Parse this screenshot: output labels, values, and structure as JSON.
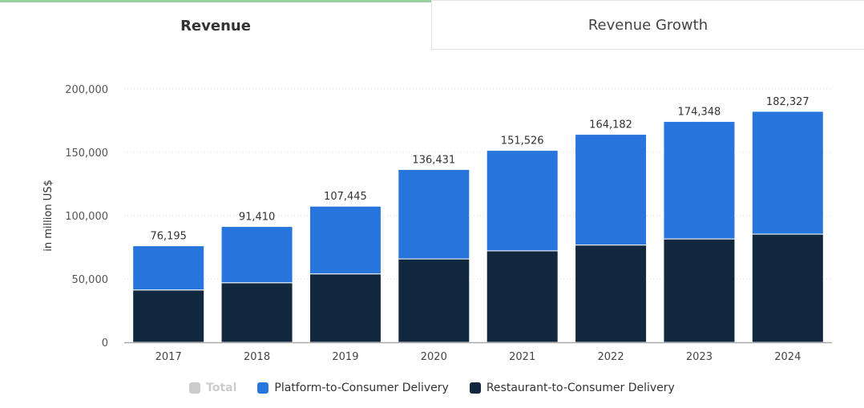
{
  "tabs": [
    {
      "label": "Revenue",
      "active": true
    },
    {
      "label": "Revenue Growth",
      "active": false
    }
  ],
  "colors": {
    "platform": "#2876dd",
    "restaurant": "#12283f",
    "total_hidden": "#cccccc",
    "tab_accent": "#97cf9d"
  },
  "chart_data": {
    "type": "bar",
    "stacked": true,
    "ylabel": "in million US$",
    "ylim": [
      0,
      200000
    ],
    "yticks": [
      "0",
      "50,000",
      "100,000",
      "150,000",
      "200,000"
    ],
    "ytick_values": [
      0,
      50000,
      100000,
      150000,
      200000
    ],
    "grid": true,
    "categories": [
      "2017",
      "2018",
      "2019",
      "2020",
      "2021",
      "2022",
      "2023",
      "2024"
    ],
    "totals": [
      "76,195",
      "91,410",
      "107,445",
      "136,431",
      "151,526",
      "164,182",
      "174,348",
      "182,327"
    ],
    "total_values": [
      76195,
      91410,
      107445,
      136431,
      151526,
      164182,
      174348,
      182327
    ],
    "series": [
      {
        "name": "Restaurant-to-Consumer Delivery",
        "values": [
          41300,
          47000,
          54000,
          65800,
          72200,
          76800,
          81600,
          85400
        ]
      },
      {
        "name": "Platform-to-Consumer Delivery",
        "values": [
          34895,
          44410,
          53445,
          70631,
          79326,
          87382,
          92748,
          96927
        ]
      }
    ],
    "legend": [
      {
        "label": "Total",
        "hidden": true
      },
      {
        "label": "Platform-to-Consumer Delivery"
      },
      {
        "label": "Restaurant-to-Consumer Delivery"
      }
    ],
    "legend_position": "bottom"
  }
}
